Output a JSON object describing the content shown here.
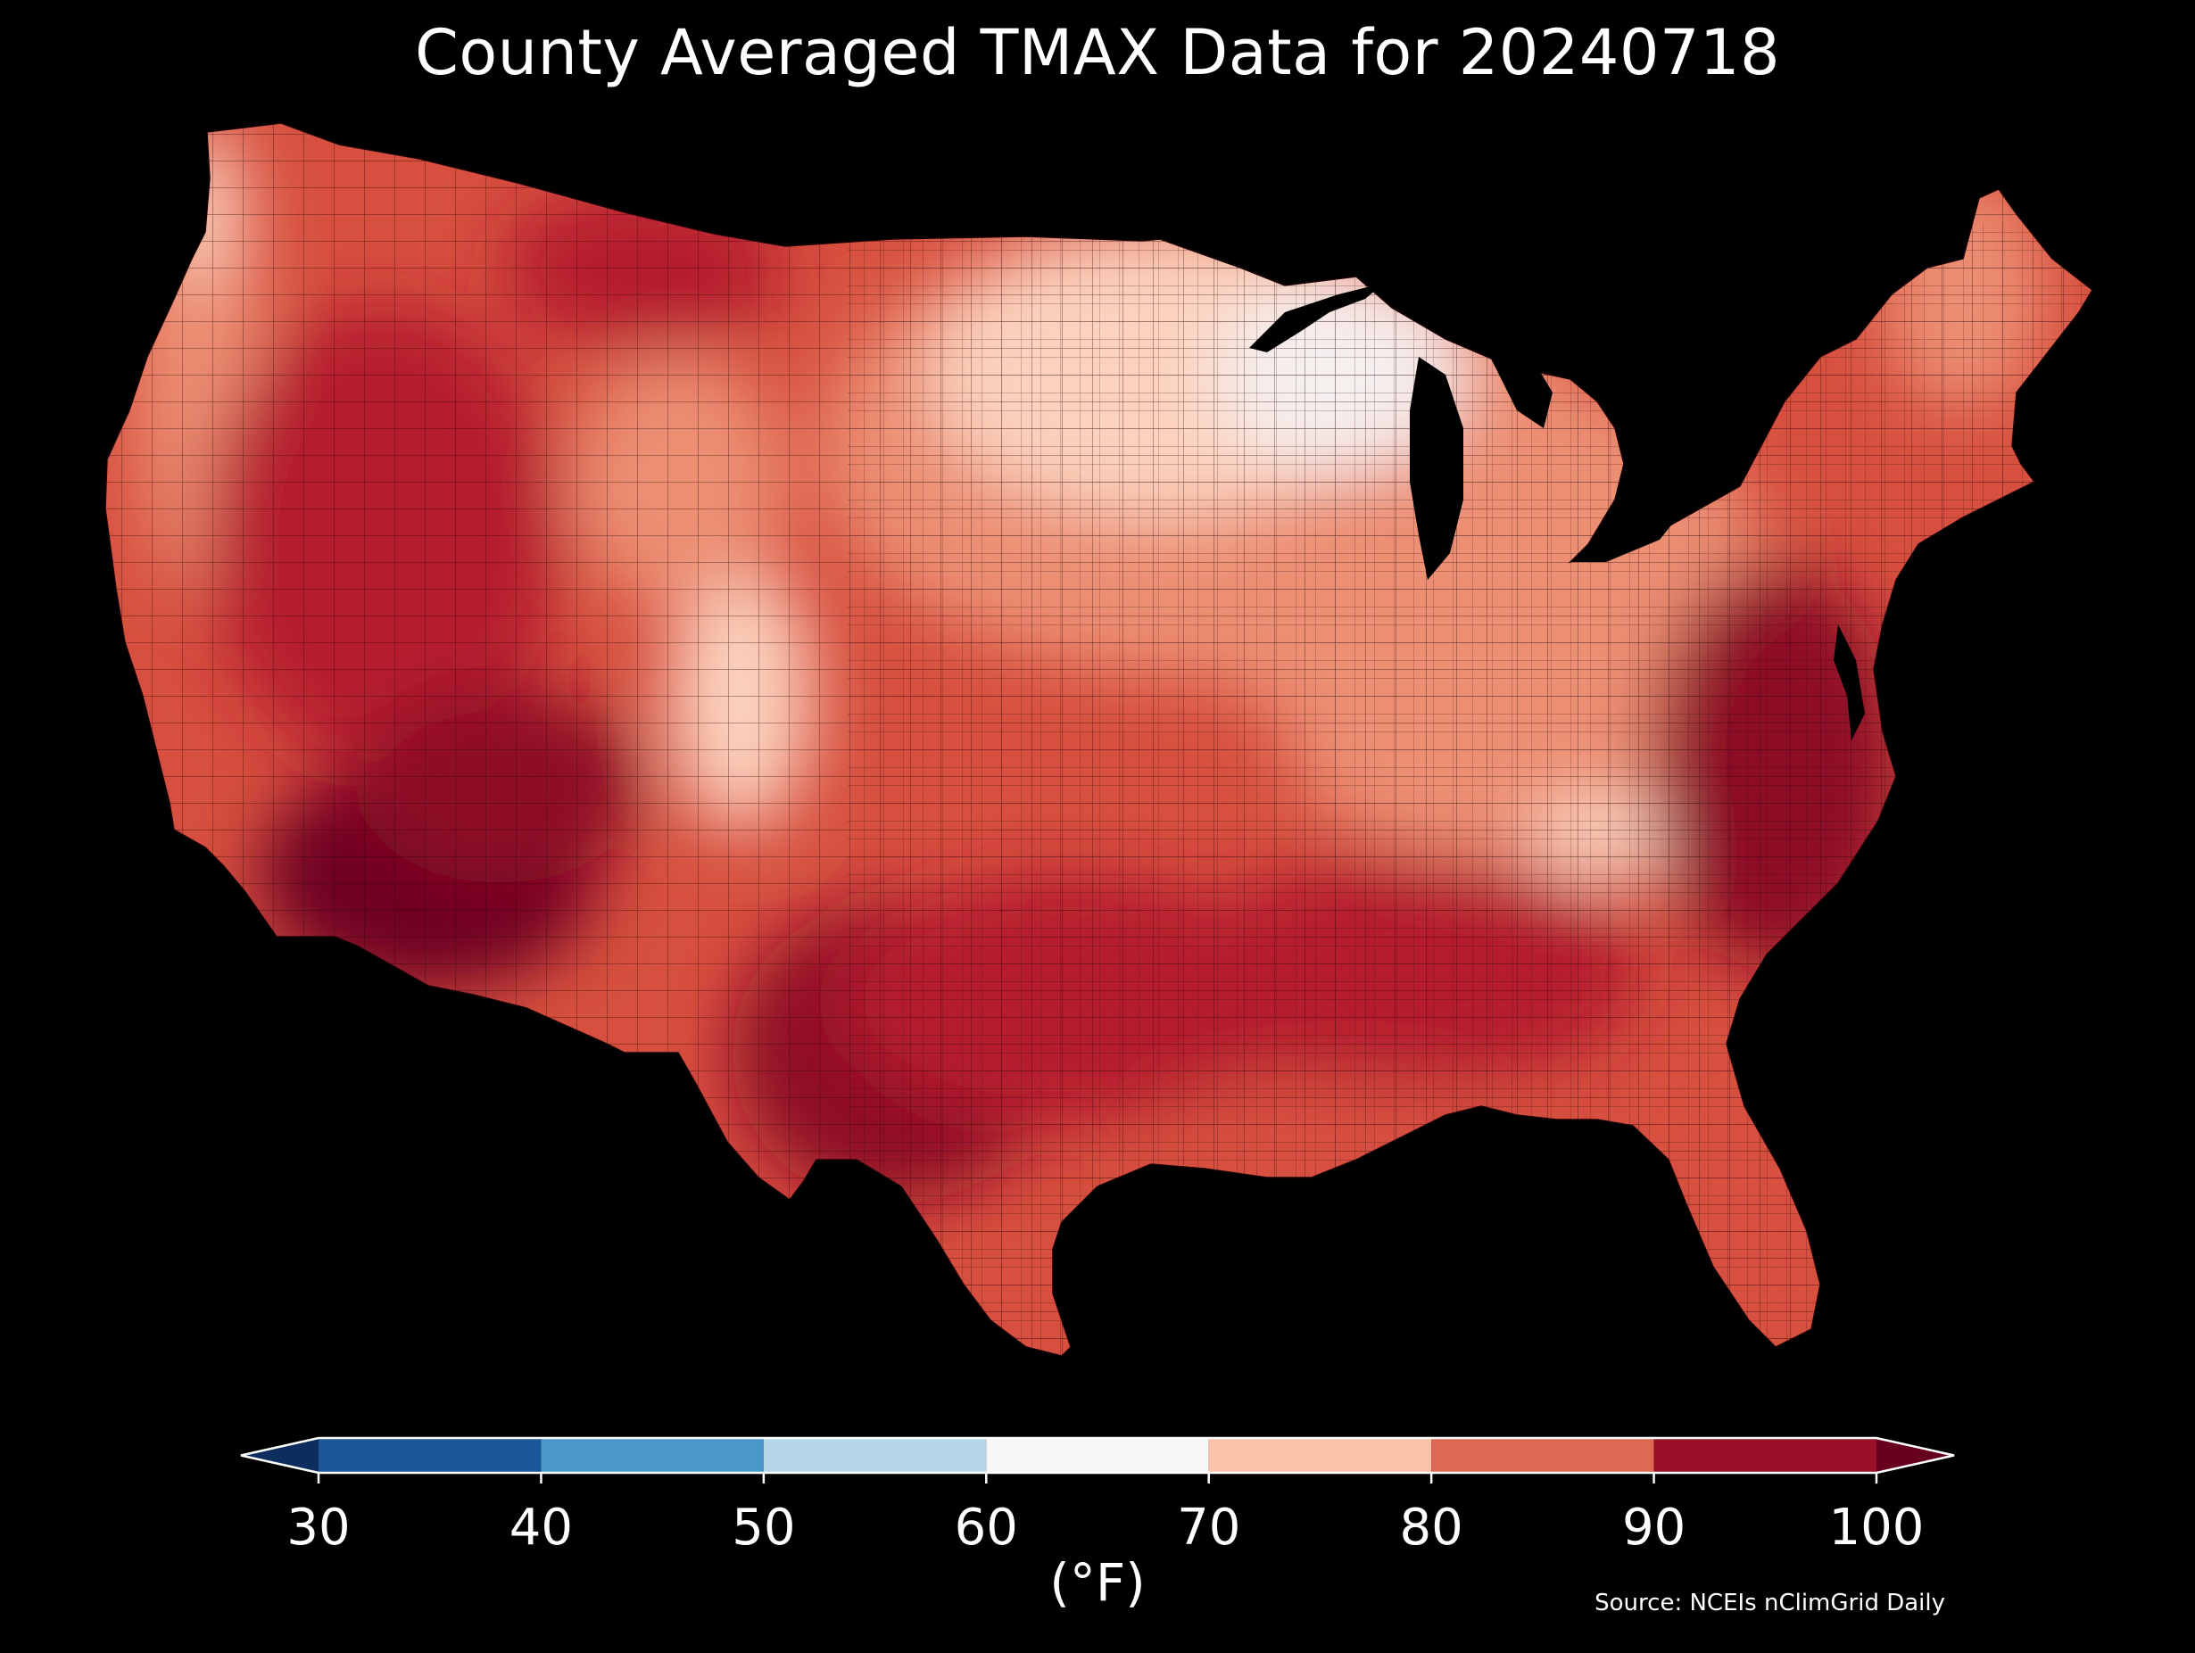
{
  "title": "County Averaged TMAX Data for 20240718",
  "colorbar": {
    "units": "(°F)",
    "ticks": [
      "30",
      "40",
      "50",
      "60",
      "70",
      "80",
      "90",
      "100"
    ],
    "bins": [
      {
        "from": 30,
        "to": 40,
        "color": "#1b5798"
      },
      {
        "from": 40,
        "to": 50,
        "color": "#4a97c9"
      },
      {
        "from": 50,
        "to": 60,
        "color": "#b6d7ea"
      },
      {
        "from": 60,
        "to": 70,
        "color": "#f7f7f7"
      },
      {
        "from": 70,
        "to": 80,
        "color": "#fbc4a8"
      },
      {
        "from": 80,
        "to": 90,
        "color": "#dc6953"
      },
      {
        "from": 90,
        "to": 100,
        "color": "#9b1028"
      }
    ],
    "under_color": "#0c2d5e",
    "over_color": "#67001f"
  },
  "source": "Source: NCEIs nClimGrid Daily",
  "map": {
    "background": "#000000",
    "region_colors": {
      "hot_southwest": "#6d0420",
      "very_hot": "#8e0c27",
      "hot": "#b51d2e",
      "warm": "#d7503f",
      "mild": "#ec8f73",
      "cool": "#fbd2bd",
      "coolest": "#f5efee"
    }
  }
}
